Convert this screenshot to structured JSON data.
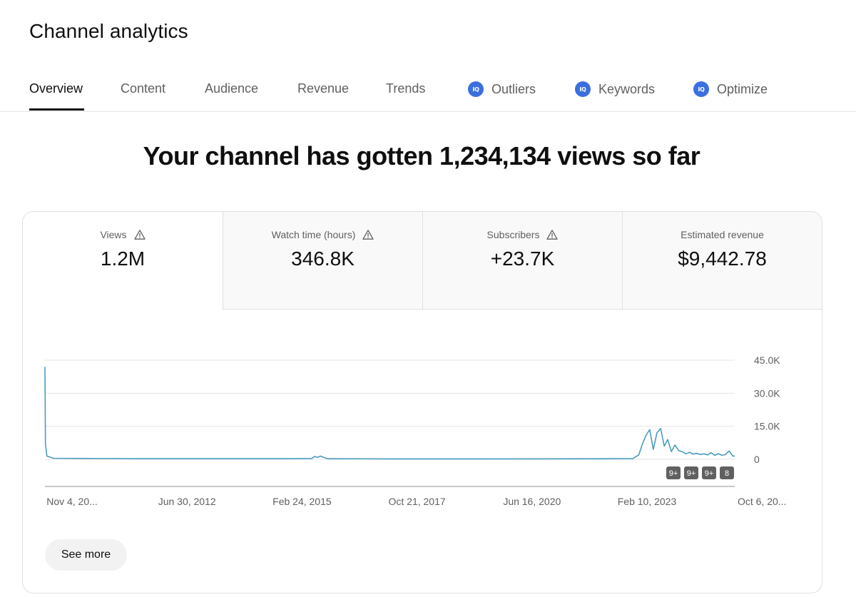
{
  "page": {
    "title": "Channel analytics"
  },
  "tabs": [
    {
      "label": "Overview",
      "active": true,
      "badge": null
    },
    {
      "label": "Content",
      "active": false,
      "badge": null
    },
    {
      "label": "Audience",
      "active": false,
      "badge": null
    },
    {
      "label": "Revenue",
      "active": false,
      "badge": null
    },
    {
      "label": "Trends",
      "active": false,
      "badge": null
    },
    {
      "label": "Outliers",
      "active": false,
      "badge": "vidiq-icon"
    },
    {
      "label": "Keywords",
      "active": false,
      "badge": "vidiq-icon"
    },
    {
      "label": "Optimize",
      "active": false,
      "badge": "vidiq-icon"
    }
  ],
  "badge_text": "IQ",
  "headline": "Your channel has gotten 1,234,134 views so far",
  "metrics": [
    {
      "label": "Views",
      "value": "1.2M",
      "warning": true,
      "active": true
    },
    {
      "label": "Watch time (hours)",
      "value": "346.8K",
      "warning": true,
      "active": false
    },
    {
      "label": "Subscribers",
      "value": "+23.7K",
      "warning": true,
      "active": false
    },
    {
      "label": "Estimated revenue",
      "value": "$9,442.78",
      "warning": false,
      "active": false
    }
  ],
  "colors": {
    "line": "#4a9cbf",
    "accent_badge": "#3b6fe0",
    "grid": "#e5e5e5"
  },
  "chart_data": {
    "type": "line",
    "x_tick_labels": [
      "Nov 4, 20...",
      "Jun 30, 2012",
      "Feb 24, 2015",
      "Oct 21, 2017",
      "Jun 16, 2020",
      "Feb 10, 2023",
      "Oct 6, 20..."
    ],
    "y_tick_labels": [
      "45.0K",
      "30.0K",
      "15.0K",
      "0"
    ],
    "ylim": [
      0,
      45000
    ],
    "grid": true,
    "series": [
      {
        "points": [
          [
            "2009-11-04",
            42000
          ],
          [
            "2009-11-08",
            7000
          ],
          [
            "2009-11-20",
            1500
          ],
          [
            "2010-01-15",
            500
          ],
          [
            "2012-01-01",
            300
          ],
          [
            "2014-01-01",
            300
          ],
          [
            "2015-06-01",
            300
          ],
          [
            "2016-01-01",
            400
          ],
          [
            "2016-01-25",
            1300
          ],
          [
            "2016-02-20",
            900
          ],
          [
            "2016-03-15",
            1500
          ],
          [
            "2016-04-10",
            900
          ],
          [
            "2016-05-15",
            300
          ],
          [
            "2018-01-01",
            200
          ],
          [
            "2020-01-01",
            200
          ],
          [
            "2022-06-01",
            250
          ],
          [
            "2023-06-01",
            350
          ],
          [
            "2023-07-20",
            2000
          ],
          [
            "2023-08-20",
            7000
          ],
          [
            "2023-09-20",
            11000
          ],
          [
            "2023-10-20",
            13500
          ],
          [
            "2023-11-20",
            4500
          ],
          [
            "2023-12-20",
            12000
          ],
          [
            "2024-01-20",
            14000
          ],
          [
            "2024-02-20",
            6000
          ],
          [
            "2024-03-20",
            9000
          ],
          [
            "2024-04-20",
            3500
          ],
          [
            "2024-05-20",
            6500
          ],
          [
            "2024-06-20",
            4000
          ],
          [
            "2024-07-20",
            3500
          ],
          [
            "2024-08-20",
            2500
          ],
          [
            "2024-09-20",
            3200
          ],
          [
            "2024-10-20",
            2400
          ],
          [
            "2024-11-20",
            2700
          ],
          [
            "2024-12-20",
            2200
          ],
          [
            "2025-01-20",
            2500
          ],
          [
            "2025-02-20",
            2000
          ],
          [
            "2025-03-20",
            3000
          ],
          [
            "2025-04-20",
            1800
          ],
          [
            "2025-05-20",
            2600
          ],
          [
            "2025-06-20",
            1800
          ],
          [
            "2025-07-20",
            2200
          ],
          [
            "2025-08-20",
            3800
          ],
          [
            "2025-09-20",
            1500
          ],
          [
            "2025-10-06",
            1500
          ]
        ]
      }
    ],
    "annotations": [
      "9+",
      "9+",
      "9+",
      "8"
    ]
  },
  "actions": {
    "see_more_label": "See more"
  }
}
